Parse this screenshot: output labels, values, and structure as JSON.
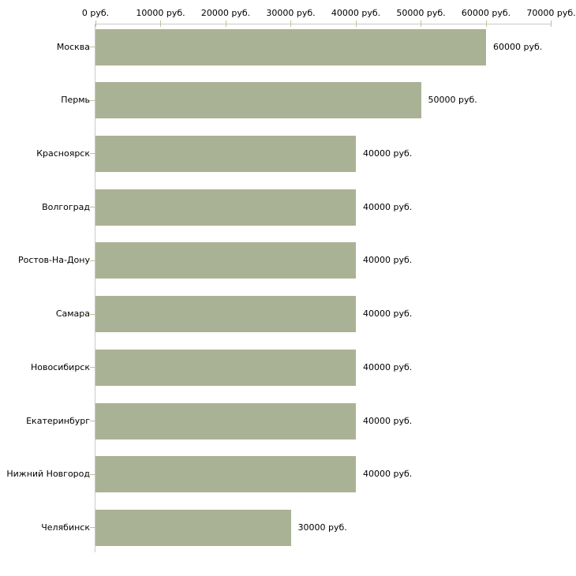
{
  "chart_data": {
    "type": "bar",
    "orientation": "horizontal",
    "title": "",
    "categories": [
      "Москва",
      "Пермь",
      "Красноярск",
      "Волгоград",
      "Ростов-На-Дону",
      "Самара",
      "Новосибирск",
      "Екатеринбург",
      "Нижний Новгород",
      "Челябинск"
    ],
    "values": [
      60000,
      50000,
      40000,
      40000,
      40000,
      40000,
      40000,
      40000,
      40000,
      30000
    ],
    "value_labels": [
      "60000 руб.",
      "50000 руб.",
      "40000 руб.",
      "40000 руб.",
      "40000 руб.",
      "40000 руб.",
      "40000 руб.",
      "40000 руб.",
      "40000 руб.",
      "30000 руб."
    ],
    "xlabel": "",
    "ylabel": "",
    "x_axis": {
      "position": "top",
      "min": 0,
      "max": 70000,
      "tick_values": [
        0,
        10000,
        20000,
        30000,
        40000,
        50000,
        60000,
        70000
      ],
      "tick_labels": [
        "0 руб.",
        "10000 руб.",
        "20000 руб.",
        "30000 руб.",
        "40000 руб.",
        "50000 руб.",
        "60000 руб.",
        "70000 руб."
      ],
      "unit": "руб."
    },
    "grid": false,
    "legend": "none",
    "colors": {
      "bar": "#aab296",
      "axis_line": "#c9c9c9",
      "tick": "#c2c296",
      "text": "#000000",
      "background": "#ffffff"
    }
  }
}
